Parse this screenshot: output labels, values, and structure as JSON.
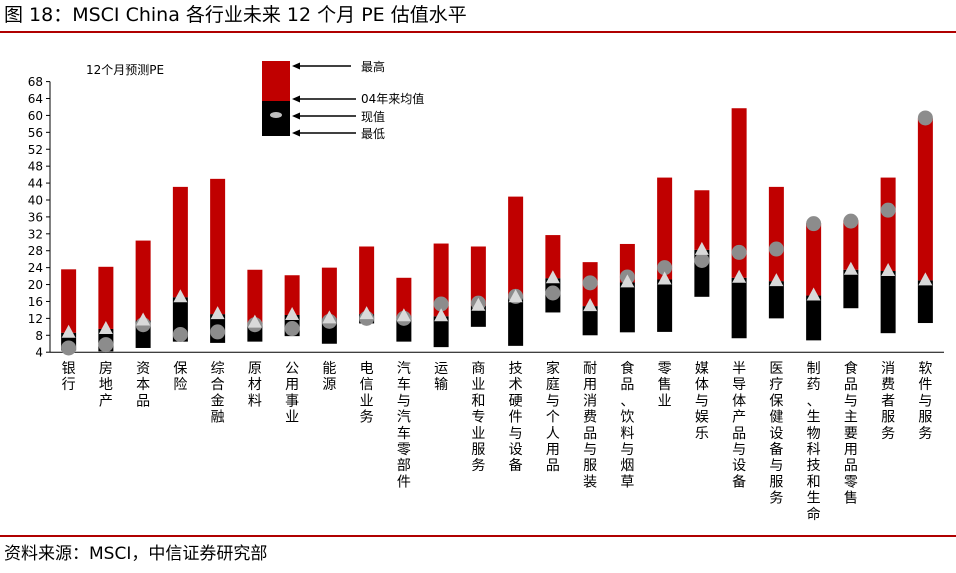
{
  "figure": {
    "title": "图 18：MSCI China 各行业未来 12 个月 PE 估值水平",
    "source": "资料来源：MSCI，中信证券研究部"
  },
  "colors": {
    "upper_bar": "#c00000",
    "lower_bar": "#000000",
    "current_marker": "#8c8c8c",
    "average_marker": "#d9d9d9",
    "rule": "#b00000"
  },
  "chart_data": {
    "type": "bar",
    "subtype": "floating range bar with markers",
    "ylabel": "12个月预测PE",
    "ylim": [
      4,
      68
    ],
    "yticks": [
      4,
      8,
      12,
      16,
      20,
      24,
      28,
      32,
      36,
      40,
      44,
      48,
      52,
      56,
      60,
      64,
      68
    ],
    "legend": {
      "max": "最高",
      "avg": "04年来均值",
      "current": "现值",
      "min": "最低"
    },
    "categories": [
      "银行",
      "房地产",
      "资本品",
      "保险",
      "综合金融",
      "原材料",
      "公用事业",
      "能源",
      "电信业务",
      "汽车与汽车零部件",
      "运输",
      "商业和专业服务",
      "技术硬件与设备",
      "家庭与个人用品",
      "耐用消费品与服装",
      "食品、饮料与烟草",
      "零售业",
      "媒体与娱乐",
      "半导体产品与设备",
      "医疗保健设备与服务",
      "制药、生物科技和生命",
      "食品与主要用品零售",
      "消费者服务",
      "软件与服务"
    ],
    "max": [
      23.6,
      24.2,
      30.4,
      43.1,
      45.0,
      23.5,
      22.2,
      24.0,
      29.0,
      21.6,
      29.7,
      29.0,
      40.8,
      31.7,
      25.3,
      29.6,
      45.3,
      42.3,
      61.7,
      43.1,
      34.5,
      35.2,
      45.3,
      59.3
    ],
    "average": [
      8.6,
      9.5,
      11.5,
      17.0,
      13.0,
      11.0,
      12.8,
      12.0,
      13.0,
      12.5,
      12.5,
      15.0,
      17.0,
      21.5,
      14.9,
      20.5,
      21.2,
      28.2,
      21.6,
      20.8,
      17.4,
      23.5,
      23.2,
      21.0
    ],
    "current": [
      5.0,
      5.8,
      10.5,
      8.2,
      8.8,
      10.5,
      9.6,
      11.3,
      12.0,
      12.0,
      15.4,
      15.6,
      17.2,
      18.0,
      20.4,
      21.8,
      24.0,
      25.7,
      27.6,
      28.4,
      34.4,
      35.0,
      37.6,
      59.4
    ],
    "min": [
      4.4,
      4.2,
      5.0,
      6.5,
      6.2,
      6.5,
      7.8,
      6.0,
      10.8,
      6.5,
      5.2,
      10.0,
      5.5,
      13.4,
      8.0,
      8.7,
      8.8,
      17.1,
      7.3,
      12.0,
      6.8,
      14.4,
      8.5,
      10.9
    ]
  }
}
